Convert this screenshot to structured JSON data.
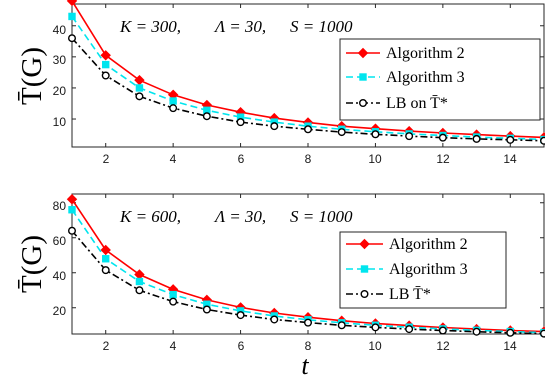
{
  "chart_data": [
    {
      "type": "line",
      "title": "K = 300, Λ = 30, S = 1000",
      "title_parts": {
        "k_eq": "K = 300,",
        "lambda_eq": "Λ = 30,",
        "s_eq": "S = 1000"
      },
      "ylabel": "T̄(G)",
      "xlabel": "",
      "xlim": [
        1,
        15
      ],
      "ylim": [
        1,
        47
      ],
      "xticks": [
        "2",
        "4",
        "6",
        "8",
        "10",
        "12",
        "14"
      ],
      "yticks": [
        "10",
        "20",
        "30",
        "40"
      ],
      "x": [
        1,
        2,
        3,
        4,
        5,
        6,
        7,
        8,
        9,
        10,
        11,
        12,
        13,
        14,
        15
      ],
      "legend_position": "right",
      "series": [
        {
          "name": "Algorithm 2",
          "color": "#ff0000",
          "marker": "diamond",
          "dash": "solid",
          "values": [
            48,
            30.5,
            22.5,
            17.8,
            14.5,
            12.2,
            10.3,
            8.9,
            7.7,
            6.9,
            6.1,
            5.5,
            5.0,
            4.5,
            4.1
          ]
        },
        {
          "name": "Algorithm 3",
          "color": "#00e5ee",
          "marker": "square",
          "dash": "dashed",
          "values": [
            43,
            27.5,
            20.0,
            15.8,
            12.8,
            10.6,
            9.0,
            7.7,
            6.7,
            5.9,
            5.2,
            4.7,
            4.2,
            3.8,
            3.4
          ]
        },
        {
          "name": "LB on T̄*",
          "color": "#000000",
          "marker": "circle",
          "dash": "dashdot",
          "values": [
            36,
            24.0,
            17.3,
            13.5,
            10.9,
            9.0,
            7.7,
            6.7,
            5.8,
            5.1,
            4.5,
            4.0,
            3.6,
            3.3,
            3.0
          ]
        }
      ]
    },
    {
      "type": "line",
      "title": "K = 600, Λ = 30, S = 1000",
      "title_parts": {
        "k_eq": "K = 600,",
        "lambda_eq": "Λ = 30,",
        "s_eq": "S = 1000"
      },
      "ylabel": "T̄(G)",
      "xlabel": "t",
      "xlim": [
        1,
        15
      ],
      "ylim": [
        5,
        85
      ],
      "xticks": [
        "2",
        "4",
        "6",
        "8",
        "10",
        "12",
        "14"
      ],
      "yticks": [
        "20",
        "40",
        "60",
        "80"
      ],
      "x": [
        1,
        2,
        3,
        4,
        5,
        6,
        7,
        8,
        9,
        10,
        11,
        12,
        13,
        14,
        15
      ],
      "legend_position": "right",
      "series": [
        {
          "name": "Algorithm 2",
          "color": "#ff0000",
          "marker": "diamond",
          "dash": "solid",
          "values": [
            82,
            53,
            39,
            30.5,
            24.5,
            20.2,
            17.0,
            14.6,
            12.6,
            11.0,
            9.8,
            8.7,
            7.8,
            7.0,
            6.4
          ]
        },
        {
          "name": "Algorithm 3",
          "color": "#00e5ee",
          "marker": "square",
          "dash": "dashed",
          "values": [
            76,
            48,
            35,
            27.5,
            22,
            18.2,
            15.3,
            13.1,
            11.4,
            10.0,
            8.9,
            7.9,
            7.1,
            6.4,
            5.8
          ]
        },
        {
          "name": "LB T̄*",
          "color": "#000000",
          "marker": "circle",
          "dash": "dashdot",
          "values": [
            64,
            41.5,
            30,
            23.5,
            19,
            15.8,
            13.3,
            11.5,
            10.0,
            8.8,
            7.8,
            7.0,
            6.3,
            5.7,
            5.2
          ]
        }
      ]
    }
  ]
}
